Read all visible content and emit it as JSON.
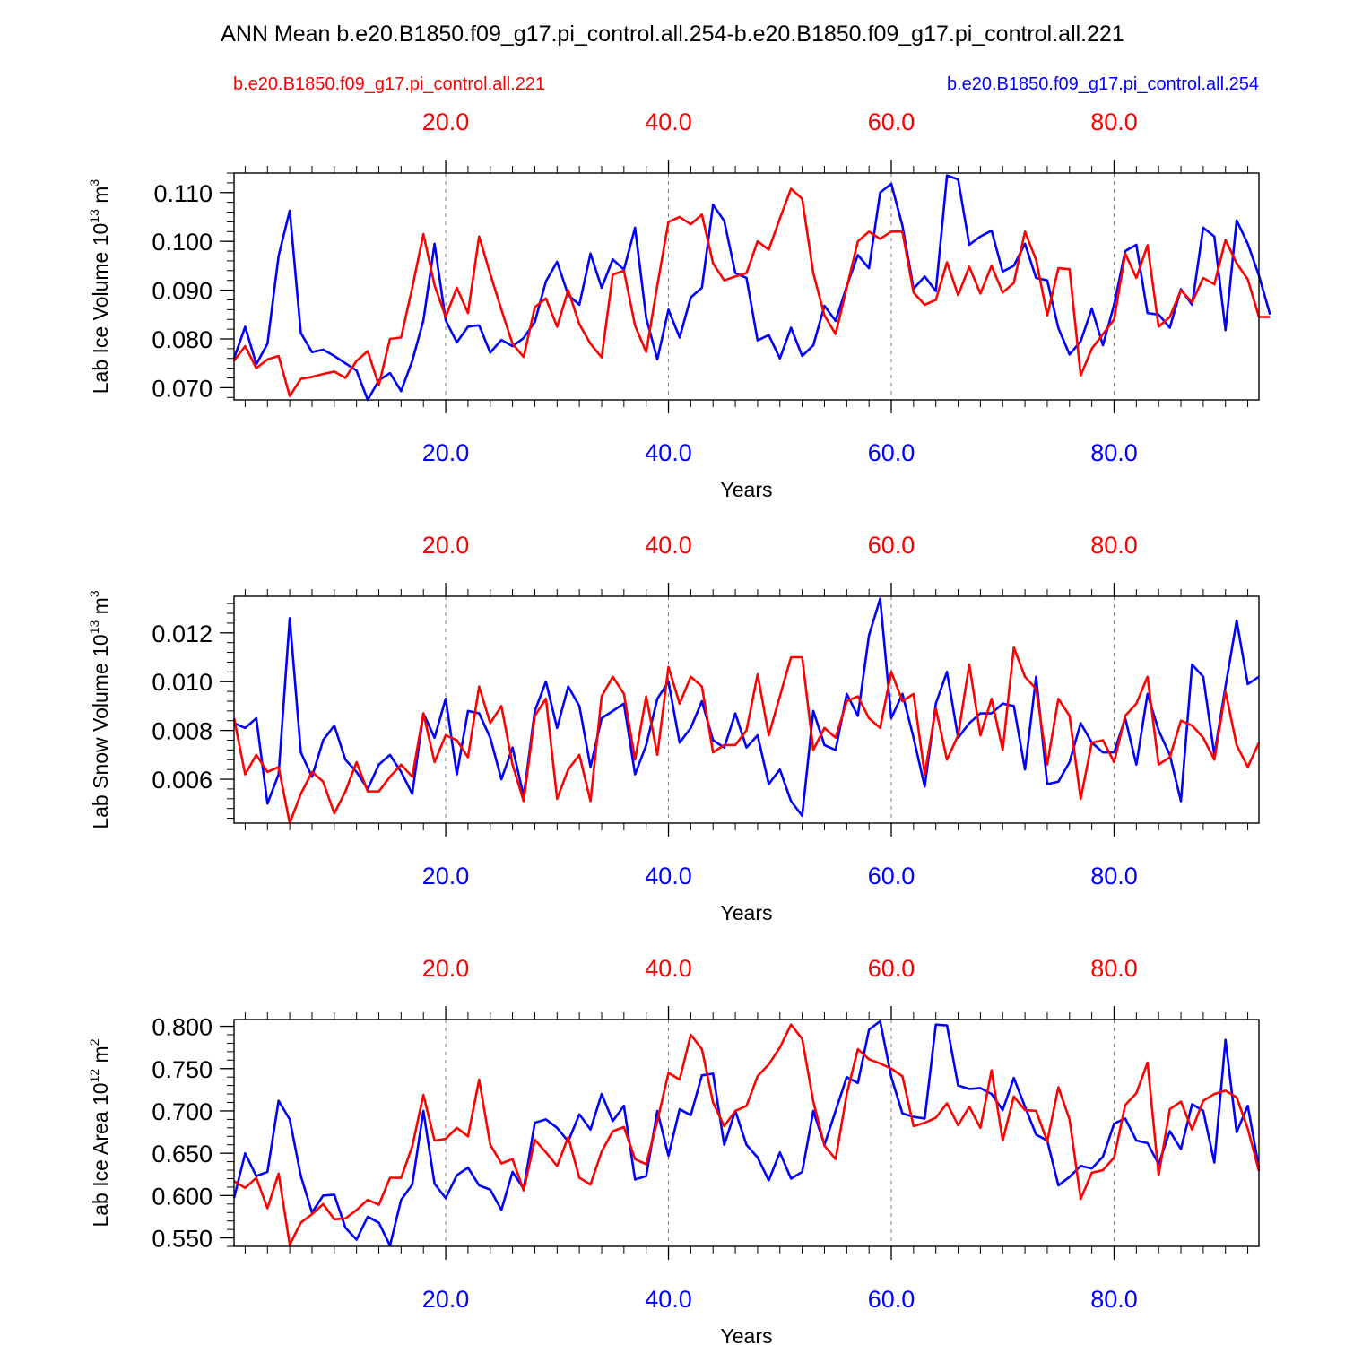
{
  "title": "ANN Mean b.e20.B1850.f09_g17.pi_control.all.254-b.e20.B1850.f09_g17.pi_control.all.221",
  "legend": {
    "left_label": "b.e20.B1850.f09_g17.pi_control.all.221",
    "right_label": "b.e20.B1850.f09_g17.pi_control.all.254",
    "left_color": "#ff0000",
    "right_color": "#0000ff"
  },
  "colors": {
    "case_221": "#ff0000",
    "case_254": "#0000ff",
    "axis": "#000000",
    "grid": "#777777"
  },
  "chart_data": [
    {
      "type": "line",
      "id": "ice-volume",
      "ylabel": "Lab Ice Volume 10",
      "ylabel_exp": "13",
      "ylabel_unit": " m",
      "ylabel_unit_exp": "3",
      "xlabel": "Years",
      "xlim": [
        1,
        93
      ],
      "ylim": [
        0.0675,
        0.114
      ],
      "yticks": [
        0.07,
        0.08,
        0.09,
        0.1,
        0.11
      ],
      "ytick_labels": [
        "0.070",
        "0.080",
        "0.090",
        "0.100",
        "0.110"
      ],
      "xticks": [
        20,
        40,
        60,
        80
      ],
      "xtick_labels": [
        "20.0",
        "40.0",
        "60.0",
        "80.0"
      ],
      "series": [
        {
          "name": "b.e20.B1850.f09_g17.pi_control.all.254",
          "color": "#0000ff",
          "values": [
            0.076,
            0.0825,
            0.0748,
            0.079,
            0.097,
            0.1063,
            0.0812,
            0.0773,
            0.0778,
            0.0765,
            0.075,
            0.0735,
            0.0675,
            0.0715,
            0.073,
            0.0693,
            0.0755,
            0.0838,
            0.0995,
            0.0838,
            0.0793,
            0.0825,
            0.0828,
            0.0772,
            0.0798,
            0.0785,
            0.0802,
            0.0835,
            0.0918,
            0.0958,
            0.089,
            0.087,
            0.0975,
            0.0905,
            0.0963,
            0.0942,
            0.1028,
            0.0843,
            0.0758,
            0.086,
            0.0803,
            0.0885,
            0.0905,
            0.1075,
            0.1042,
            0.0935,
            0.0925,
            0.0797,
            0.0808,
            0.076,
            0.0823,
            0.0765,
            0.0787,
            0.0868,
            0.0837,
            0.0908,
            0.0972,
            0.0945,
            0.11,
            0.1118,
            0.1032,
            0.0903,
            0.0928,
            0.0898,
            0.1135,
            0.1127,
            0.0993,
            0.101,
            0.1022,
            0.0938,
            0.095,
            0.0995,
            0.0925,
            0.092,
            0.0822,
            0.0768,
            0.0795,
            0.0862,
            0.0787,
            0.087,
            0.098,
            0.0993,
            0.0853,
            0.085,
            0.0823,
            0.0902,
            0.087,
            0.1028,
            0.101,
            0.0818,
            0.1043,
            0.0995,
            0.093,
            0.085
          ]
        },
        {
          "name": "b.e20.B1850.f09_g17.pi_control.all.221",
          "color": "#ff0000",
          "values": [
            0.0755,
            0.0785,
            0.074,
            0.0758,
            0.0765,
            0.0683,
            0.0718,
            0.0722,
            0.0728,
            0.0733,
            0.072,
            0.0755,
            0.0775,
            0.0705,
            0.08,
            0.0803,
            0.0905,
            0.1015,
            0.091,
            0.0845,
            0.0905,
            0.0853,
            0.101,
            0.0933,
            0.086,
            0.079,
            0.0763,
            0.0865,
            0.0883,
            0.0825,
            0.09,
            0.083,
            0.079,
            0.0762,
            0.0932,
            0.094,
            0.0827,
            0.0773,
            0.091,
            0.104,
            0.105,
            0.1035,
            0.1055,
            0.0955,
            0.092,
            0.0928,
            0.0935,
            0.1,
            0.0983,
            0.1047,
            0.1108,
            0.1087,
            0.0935,
            0.0848,
            0.081,
            0.0905,
            0.1,
            0.102,
            0.1005,
            0.102,
            0.102,
            0.0895,
            0.087,
            0.088,
            0.0957,
            0.089,
            0.0948,
            0.0893,
            0.095,
            0.0895,
            0.0915,
            0.102,
            0.0962,
            0.0848,
            0.0945,
            0.0943,
            0.0725,
            0.078,
            0.081,
            0.084,
            0.0975,
            0.0925,
            0.0992,
            0.0825,
            0.0845,
            0.09,
            0.0875,
            0.0925,
            0.0912,
            0.1003,
            0.0955,
            0.0922,
            0.0845,
            0.0845
          ]
        }
      ]
    },
    {
      "type": "line",
      "id": "snow-volume",
      "ylabel": "Lab Snow Volume 10",
      "ylabel_exp": "13",
      "ylabel_unit": " m",
      "ylabel_unit_exp": "3",
      "xlabel": "Years",
      "xlim": [
        1,
        93
      ],
      "ylim": [
        0.0042,
        0.0135
      ],
      "yticks": [
        0.006,
        0.008,
        0.01,
        0.012
      ],
      "ytick_labels": [
        "0.006",
        "0.008",
        "0.010",
        "0.012"
      ],
      "xticks": [
        20,
        40,
        60,
        80
      ],
      "xtick_labels": [
        "20.0",
        "40.0",
        "60.0",
        "80.0"
      ],
      "series": [
        {
          "name": "b.e20.B1850.f09_g17.pi_control.all.254",
          "color": "#0000ff",
          "values": [
            0.0083,
            0.0081,
            0.0085,
            0.005,
            0.0062,
            0.0126,
            0.0071,
            0.0061,
            0.0076,
            0.0082,
            0.0068,
            0.0063,
            0.0056,
            0.0066,
            0.007,
            0.0063,
            0.0054,
            0.0087,
            0.0077,
            0.0093,
            0.0062,
            0.0088,
            0.0087,
            0.0077,
            0.006,
            0.0073,
            0.0053,
            0.0088,
            0.01,
            0.0081,
            0.0098,
            0.009,
            0.0065,
            0.0085,
            0.0088,
            0.0091,
            0.0062,
            0.0074,
            0.0093,
            0.01,
            0.0075,
            0.0081,
            0.0092,
            0.0076,
            0.0073,
            0.0087,
            0.0073,
            0.0078,
            0.0058,
            0.0064,
            0.0051,
            0.0045,
            0.0088,
            0.0074,
            0.0072,
            0.0095,
            0.0086,
            0.0119,
            0.0134,
            0.0085,
            0.0095,
            0.0077,
            0.0057,
            0.0091,
            0.0104,
            0.0077,
            0.0083,
            0.0087,
            0.0087,
            0.0091,
            0.009,
            0.0064,
            0.0102,
            0.0058,
            0.0059,
            0.0067,
            0.0083,
            0.0075,
            0.0071,
            0.0071,
            0.0085,
            0.0066,
            0.0095,
            0.008,
            0.007,
            0.0051,
            0.0107,
            0.0102,
            0.007,
            0.0098,
            0.0125,
            0.0099,
            0.0102
          ]
        },
        {
          "name": "b.e20.B1850.f09_g17.pi_control.all.221",
          "color": "#ff0000",
          "values": [
            0.0085,
            0.0062,
            0.007,
            0.0063,
            0.0065,
            0.0042,
            0.0054,
            0.0063,
            0.0059,
            0.0046,
            0.0055,
            0.0067,
            0.0055,
            0.0055,
            0.0061,
            0.0066,
            0.0061,
            0.0087,
            0.0067,
            0.0078,
            0.0076,
            0.0069,
            0.0098,
            0.0083,
            0.009,
            0.0066,
            0.0051,
            0.0086,
            0.0093,
            0.0052,
            0.0064,
            0.007,
            0.0051,
            0.0094,
            0.0102,
            0.0095,
            0.0068,
            0.0094,
            0.007,
            0.0106,
            0.0091,
            0.0102,
            0.0098,
            0.0071,
            0.0074,
            0.0074,
            0.008,
            0.0103,
            0.0078,
            0.0094,
            0.011,
            0.011,
            0.0072,
            0.0081,
            0.0077,
            0.0092,
            0.0094,
            0.0085,
            0.0081,
            0.0104,
            0.0092,
            0.0095,
            0.0062,
            0.0089,
            0.0068,
            0.0078,
            0.0107,
            0.0078,
            0.0093,
            0.0072,
            0.0114,
            0.0102,
            0.0097,
            0.0066,
            0.0093,
            0.0086,
            0.0052,
            0.0075,
            0.0076,
            0.0067,
            0.0086,
            0.0091,
            0.0102,
            0.0066,
            0.0069,
            0.0084,
            0.0082,
            0.0077,
            0.0068,
            0.0096,
            0.0074,
            0.0065,
            0.0075
          ]
        }
      ]
    },
    {
      "type": "line",
      "id": "ice-area",
      "ylabel": "Lab Ice Area 10",
      "ylabel_exp": "12",
      "ylabel_unit": " m",
      "ylabel_unit_exp": "2",
      "xlabel": "Years",
      "xlim": [
        1,
        93
      ],
      "ylim": [
        0.54,
        0.808
      ],
      "yticks": [
        0.55,
        0.6,
        0.65,
        0.7,
        0.75,
        0.8
      ],
      "ytick_labels": [
        "0.550",
        "0.600",
        "0.650",
        "0.700",
        "0.750",
        "0.800"
      ],
      "xticks": [
        20,
        40,
        60,
        80
      ],
      "xtick_labels": [
        "20.0",
        "40.0",
        "60.0",
        "80.0"
      ],
      "series": [
        {
          "name": "b.e20.B1850.f09_g17.pi_control.all.254",
          "color": "#0000ff",
          "values": [
            0.597,
            0.65,
            0.623,
            0.628,
            0.712,
            0.69,
            0.623,
            0.58,
            0.6,
            0.601,
            0.562,
            0.548,
            0.575,
            0.568,
            0.541,
            0.595,
            0.613,
            0.7,
            0.614,
            0.597,
            0.624,
            0.633,
            0.612,
            0.607,
            0.583,
            0.628,
            0.608,
            0.686,
            0.69,
            0.68,
            0.664,
            0.696,
            0.678,
            0.72,
            0.688,
            0.706,
            0.619,
            0.623,
            0.7,
            0.647,
            0.702,
            0.695,
            0.742,
            0.744,
            0.66,
            0.7,
            0.66,
            0.645,
            0.618,
            0.651,
            0.62,
            0.628,
            0.7,
            0.66,
            0.7,
            0.74,
            0.733,
            0.796,
            0.806,
            0.74,
            0.697,
            0.693,
            0.691,
            0.802,
            0.801,
            0.73,
            0.726,
            0.727,
            0.72,
            0.701,
            0.739,
            0.705,
            0.672,
            0.665,
            0.612,
            0.622,
            0.635,
            0.632,
            0.646,
            0.685,
            0.691,
            0.665,
            0.662,
            0.637,
            0.676,
            0.655,
            0.708,
            0.7,
            0.639,
            0.784,
            0.675,
            0.706,
            0.633
          ]
        },
        {
          "name": "b.e20.B1850.f09_g17.pi_control.all.221",
          "color": "#ff0000",
          "values": [
            0.617,
            0.609,
            0.621,
            0.585,
            0.626,
            0.542,
            0.568,
            0.578,
            0.59,
            0.572,
            0.573,
            0.583,
            0.595,
            0.589,
            0.621,
            0.621,
            0.658,
            0.719,
            0.665,
            0.667,
            0.68,
            0.67,
            0.737,
            0.66,
            0.638,
            0.643,
            0.606,
            0.666,
            0.651,
            0.635,
            0.669,
            0.621,
            0.613,
            0.652,
            0.676,
            0.681,
            0.643,
            0.637,
            0.688,
            0.745,
            0.737,
            0.79,
            0.773,
            0.71,
            0.682,
            0.7,
            0.706,
            0.741,
            0.755,
            0.775,
            0.802,
            0.785,
            0.711,
            0.659,
            0.643,
            0.72,
            0.773,
            0.761,
            0.756,
            0.75,
            0.741,
            0.682,
            0.686,
            0.692,
            0.709,
            0.683,
            0.705,
            0.68,
            0.748,
            0.665,
            0.717,
            0.701,
            0.7,
            0.664,
            0.728,
            0.69,
            0.596,
            0.627,
            0.63,
            0.645,
            0.707,
            0.721,
            0.757,
            0.624,
            0.702,
            0.711,
            0.678,
            0.712,
            0.72,
            0.724,
            0.716,
            0.679,
            0.629
          ]
        }
      ]
    }
  ]
}
